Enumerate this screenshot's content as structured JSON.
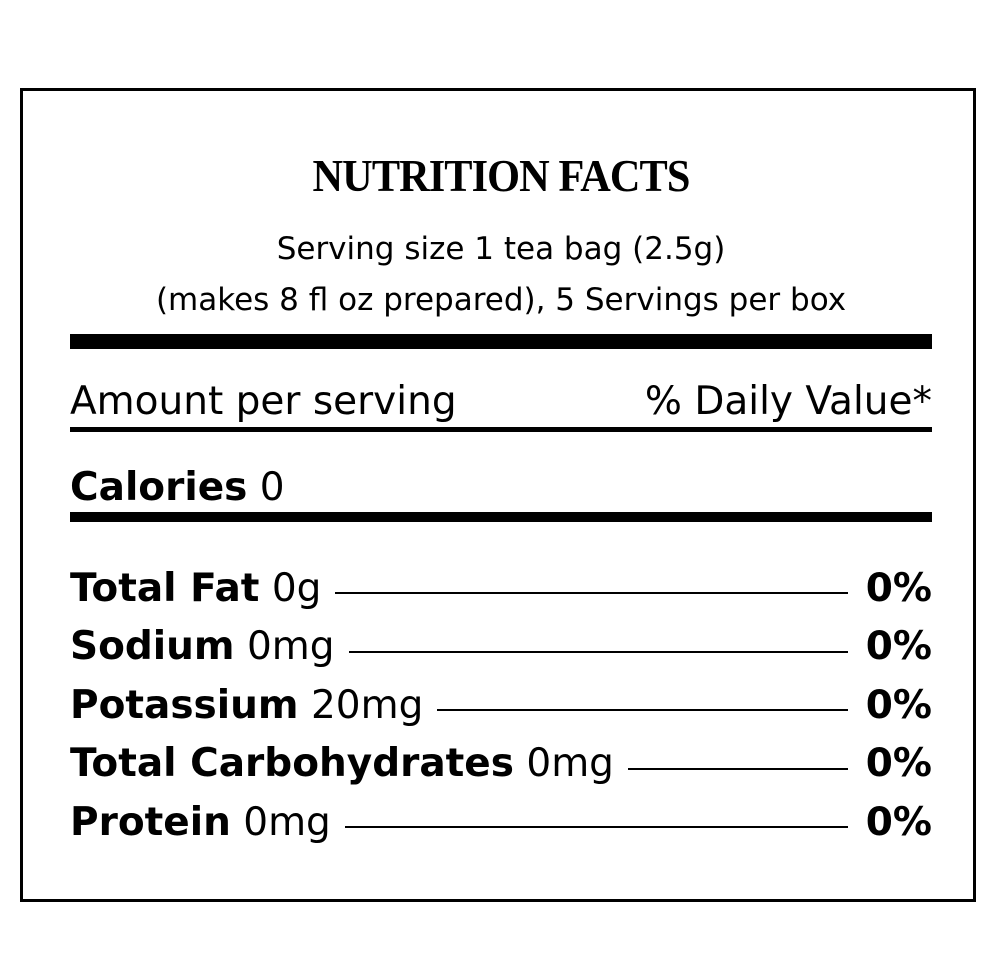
{
  "header": {
    "title": "NUTRITION FACTS"
  },
  "serving": {
    "lines": [
      "Serving size 1 tea bag (2.5g)",
      "(makes 8 fl oz prepared), 5 Servings per box"
    ]
  },
  "amount_header": {
    "left": "Amount per serving",
    "right": "% Daily Value*"
  },
  "calories": {
    "label": "Calories",
    "value": "0"
  },
  "nutrients": [
    {
      "name": "Total Fat",
      "amount": "0g",
      "dv": "0%"
    },
    {
      "name": "Sodium",
      "amount": "0mg",
      "dv": "0%"
    },
    {
      "name": "Potassium",
      "amount": "20mg",
      "dv": "0%"
    },
    {
      "name": "Total Carbohydrates",
      "amount": "0mg",
      "dv": "0%"
    },
    {
      "name": "Protein",
      "amount": "0mg",
      "dv": "0%"
    }
  ]
}
